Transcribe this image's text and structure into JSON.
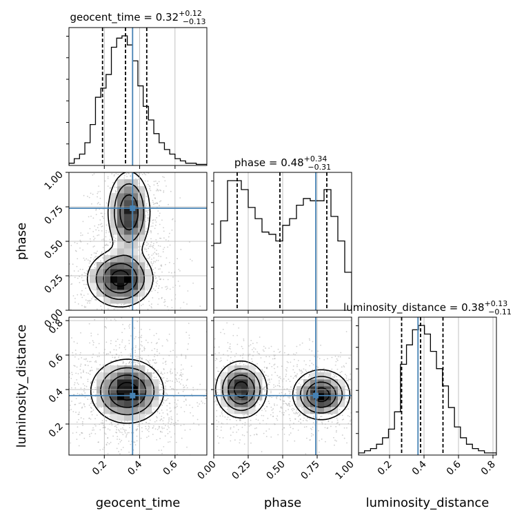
{
  "chart_data": {
    "type": "corner",
    "parameters": [
      "geocent_time",
      "phase",
      "luminosity_distance"
    ],
    "axis_ranges": {
      "geocent_time": [
        0.0,
        0.78
      ],
      "phase": [
        0.0,
        1.0
      ],
      "luminosity_distance": [
        0.02,
        0.82
      ]
    },
    "truths": {
      "geocent_time": 0.36,
      "phase": 0.74,
      "luminosity_distance": 0.365
    },
    "colors": {
      "truth": "#4682b4",
      "histogram": "#000000",
      "grid": "#b0b0b0",
      "scatter": "#a0a0a0"
    },
    "grid": true,
    "ticks": {
      "geocent_time": [
        "0.2",
        "0.4",
        "0.6"
      ],
      "geocent_time_values": [
        0.2,
        0.4,
        0.6
      ],
      "phase": [
        "0.00",
        "0.25",
        "0.50",
        "0.75",
        "1.00"
      ],
      "phase_values": [
        0.0,
        0.25,
        0.5,
        0.75,
        1.0
      ],
      "luminosity_distance": [
        "0.2",
        "0.4",
        "0.6",
        "0.8"
      ],
      "luminosity_distance_values": [
        0.2,
        0.4,
        0.6,
        0.8
      ]
    },
    "titles": [
      {
        "param": "geocent_time",
        "label": "geocent_time = 0.32",
        "sup": "+0.12",
        "sub": "−0.13"
      },
      {
        "param": "phase",
        "label": "phase = 0.48",
        "sup": "+0.34",
        "sub": "−0.31"
      },
      {
        "param": "luminosity_distance",
        "label": "luminosity_distance = 0.38",
        "sup": "+0.13",
        "sub": "−0.11"
      }
    ],
    "quantiles": {
      "geocent_time": [
        0.19,
        0.32,
        0.44
      ],
      "phase": [
        0.17,
        0.48,
        0.82
      ],
      "luminosity_distance": [
        0.27,
        0.38,
        0.51
      ]
    },
    "histograms": {
      "geocent_time": {
        "edges_range": [
          0.0,
          0.78
        ],
        "counts": [
          1,
          3,
          5,
          10,
          18,
          30,
          34,
          40,
          52,
          56,
          57,
          53,
          46,
          35,
          26,
          20,
          14,
          10,
          7,
          5,
          3,
          2,
          1,
          1,
          0.5,
          0.5
        ]
      },
      "phase": {
        "edges_range": [
          0.0,
          1.0
        ],
        "counts": [
          30,
          40,
          58,
          58,
          54,
          46,
          41,
          35,
          34,
          31,
          38,
          41,
          47,
          50,
          49,
          49,
          54,
          42,
          31,
          17
        ]
      },
      "luminosity_distance": {
        "edges_range": [
          0.02,
          0.82
        ],
        "counts": [
          1,
          2,
          3,
          5,
          8,
          12,
          20,
          42,
          51,
          58,
          60,
          56,
          48,
          40,
          32,
          22,
          13,
          8,
          5,
          3,
          2,
          1,
          1
        ]
      }
    },
    "density_2d": [
      {
        "x": "geocent_time",
        "y": "phase",
        "modes": [
          {
            "cx": 0.34,
            "cy": 0.71,
            "sx": 0.06,
            "sy": 0.15,
            "w": 1.0
          },
          {
            "cx": 0.29,
            "cy": 0.23,
            "sx": 0.09,
            "sy": 0.1,
            "w": 1.2
          }
        ]
      },
      {
        "x": "geocent_time",
        "y": "luminosity_distance",
        "modes": [
          {
            "cx": 0.33,
            "cy": 0.39,
            "sx": 0.1,
            "sy": 0.09,
            "w": 1.0
          }
        ]
      },
      {
        "x": "phase",
        "y": "luminosity_distance",
        "modes": [
          {
            "cx": 0.2,
            "cy": 0.4,
            "sx": 0.09,
            "sy": 0.08,
            "w": 1.0
          },
          {
            "cx": 0.78,
            "cy": 0.37,
            "sx": 0.1,
            "sy": 0.07,
            "w": 1.0
          }
        ]
      }
    ]
  }
}
